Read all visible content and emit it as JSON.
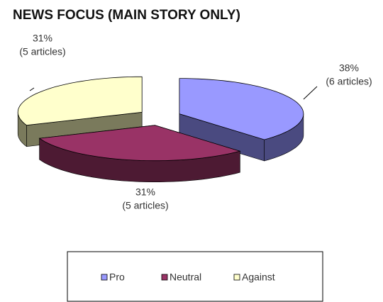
{
  "chart_data": {
    "type": "pie",
    "title": "NEWS FOCUS (MAIN STORY ONLY)",
    "categories": [
      "Pro",
      "Neutral",
      "Against"
    ],
    "values": [
      38,
      31,
      31
    ],
    "value_labels": [
      "38%",
      "31%",
      "31%"
    ],
    "article_labels": [
      "(6 articles)",
      "(5 articles)",
      "(5 articles)"
    ],
    "colors": [
      "#9999ff",
      "#993366",
      "#ffffcc"
    ],
    "side_colors": [
      "#4a4a80",
      "#4d1a33",
      "#7a7a5c"
    ],
    "legend": "bottom"
  }
}
